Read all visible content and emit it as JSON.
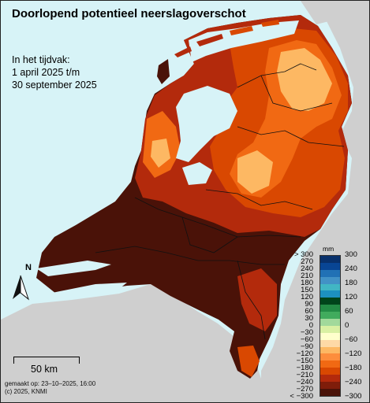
{
  "title": "Doorlopend potentieel neerslagoverschot",
  "period": {
    "line1": "In het tijdvak:",
    "line2": "1 april 2025 t/m",
    "line3": "30 september 2025"
  },
  "north_label": "N",
  "scale_label": "50 km",
  "credits": {
    "made": "gemaakt op: 23–10–2025, 16:00",
    "copyright": "(c) 2025, KNMI"
  },
  "legend": {
    "unit": "mm",
    "left_labels": [
      "> 300",
      "270",
      "240",
      "210",
      "180",
      "150",
      "120",
      "90",
      "60",
      "30",
      "0",
      "−30",
      "−60",
      "−90",
      "−120",
      "−150",
      "−180",
      "−210",
      "−240",
      "−270",
      "< −300"
    ],
    "right_labels": [
      "300",
      "240",
      "180",
      "120",
      "60",
      "0",
      "−60",
      "−120",
      "−180",
      "−240",
      "−300"
    ],
    "colors": [
      "#08306b",
      "#084594",
      "#2171b5",
      "#4292c6",
      "#41b6c4",
      "#1d91c0",
      "#00441b",
      "#238b45",
      "#41ab5d",
      "#a1d99b",
      "#d9f0a3",
      "#ffffcc",
      "#fed9a6",
      "#fdb863",
      "#fd8d3c",
      "#f16913",
      "#d94801",
      "#b32a0c",
      "#7f1d0a",
      "#4a1208"
    ]
  },
  "colors": {
    "sea": "#d7f3f7",
    "neighbour_land": "#cfcfcf",
    "deficit_extreme": "#4a1208",
    "deficit_very_high": "#b32a0c",
    "deficit_high": "#d94801",
    "deficit_moderate": "#f16913",
    "deficit_low": "#fdb863"
  }
}
